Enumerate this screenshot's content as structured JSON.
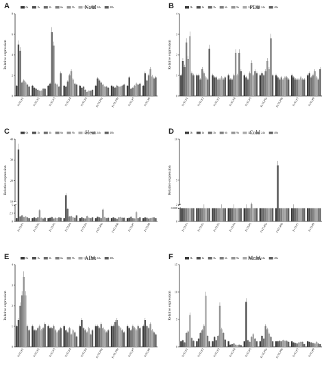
{
  "colors": {
    "series": [
      "#3a3a3a",
      "#505050",
      "#6a6a6a",
      "#7e7e7e",
      "#939393",
      "#a8a8a8",
      "#7a7a7a",
      "#5f5f5f"
    ],
    "axis": "#222222"
  },
  "chart_data": [
    {
      "panel": "A",
      "title": "NaCl",
      "type": "bar",
      "ylabel": "Relative expression",
      "ylim": [
        0,
        8
      ],
      "yticks": [
        0,
        2,
        4,
        6,
        8
      ],
      "categories": [
        "FvTLP1",
        "FvTLP2",
        "FvTLP3",
        "FvTLP4",
        "FvTLP5",
        "FvTLP6a",
        "FvTLP6b",
        "FvTLP7",
        "FvTLP8"
      ],
      "series": [
        {
          "name": "0h",
          "values": [
            1.0,
            1.0,
            1.0,
            1.0,
            1.0,
            1.0,
            1.0,
            1.0,
            1.0
          ]
        },
        {
          "name": "1h",
          "values": [
            5.0,
            0.8,
            1.2,
            0.9,
            0.8,
            1.7,
            0.9,
            1.8,
            2.2
          ]
        },
        {
          "name": "3h",
          "values": [
            4.4,
            0.7,
            6.2,
            1.4,
            0.9,
            1.5,
            0.8,
            0.7,
            1.5
          ]
        },
        {
          "name": "6h",
          "values": [
            1.3,
            0.6,
            4.9,
            2.0,
            0.6,
            1.3,
            1.0,
            0.8,
            2.0
          ]
        },
        {
          "name": "9h",
          "values": [
            1.5,
            0.5,
            1.2,
            2.4,
            0.4,
            1.1,
            0.9,
            1.0,
            2.6
          ]
        },
        {
          "name": "12h",
          "values": [
            1.3,
            0.5,
            1.1,
            1.6,
            0.5,
            0.9,
            0.9,
            1.2,
            1.9
          ]
        },
        {
          "name": "24h",
          "values": [
            1.1,
            0.7,
            0.9,
            1.2,
            0.5,
            0.9,
            1.0,
            1.1,
            1.7
          ]
        },
        {
          "name": "48h",
          "values": [
            0.9,
            0.7,
            2.2,
            1.1,
            0.6,
            0.8,
            1.1,
            1.2,
            1.8
          ]
        }
      ]
    },
    {
      "panel": "B",
      "title": "PEG",
      "type": "bar",
      "ylabel": "Relative expression",
      "ylim": [
        0,
        4
      ],
      "yticks": [
        0,
        1,
        2,
        3,
        4
      ],
      "categories": [
        "FvTLP1",
        "FvTLP2",
        "FvTLP3",
        "FvTLP4",
        "FvTLP5",
        "FvTLP6a",
        "FvTLP6b",
        "FvTLP7",
        "FvTLP8"
      ],
      "series": [
        {
          "name": "0h",
          "values": [
            1.0,
            1.0,
            1.0,
            1.0,
            1.0,
            1.0,
            1.0,
            1.0,
            1.0
          ]
        },
        {
          "name": "1h",
          "values": [
            1.7,
            1.0,
            0.9,
            0.8,
            0.9,
            1.1,
            0.9,
            0.9,
            1.1
          ]
        },
        {
          "name": "3h",
          "values": [
            1.4,
            0.8,
            0.9,
            0.8,
            0.8,
            1.0,
            0.8,
            0.8,
            0.9
          ]
        },
        {
          "name": "6h",
          "values": [
            2.6,
            1.3,
            0.8,
            1.0,
            1.1,
            1.2,
            0.9,
            0.8,
            1.0
          ]
        },
        {
          "name": "9h",
          "values": [
            1.8,
            1.1,
            0.8,
            2.1,
            1.6,
            1.7,
            0.8,
            0.8,
            1.2
          ]
        },
        {
          "name": "12h",
          "values": [
            2.9,
            0.9,
            0.9,
            1.0,
            1.0,
            1.3,
            0.9,
            0.9,
            0.9
          ]
        },
        {
          "name": "24h",
          "values": [
            1.1,
            0.8,
            0.8,
            2.1,
            1.2,
            2.8,
            0.9,
            0.8,
            0.8
          ]
        },
        {
          "name": "48h",
          "values": [
            1.0,
            2.3,
            0.9,
            1.2,
            1.1,
            1.0,
            0.8,
            0.8,
            1.3
          ]
        }
      ]
    },
    {
      "panel": "C",
      "title": "Heat",
      "type": "bar",
      "ylabel": "Relative expression",
      "ylim": [
        0,
        40
      ],
      "axis_break": {
        "low_max": 5,
        "high_min": 10
      },
      "yticks": [
        0,
        2.5,
        5,
        10,
        20,
        30,
        40
      ],
      "categories": [
        "FvTLP1",
        "FvTLP2",
        "FvTLP3",
        "FvTLP4",
        "FvTLP5",
        "FvTLP6a",
        "FvTLP6b",
        "FvTLP7",
        "FvTLP8"
      ],
      "series": [
        {
          "name": "0h",
          "values": [
            1.0,
            1.0,
            1.0,
            1.0,
            1.0,
            1.0,
            1.0,
            1.0,
            1.0
          ]
        },
        {
          "name": "1h",
          "values": [
            35.0,
            1.2,
            1.1,
            13.0,
            1.2,
            1.4,
            1.2,
            1.1,
            1.2
          ]
        },
        {
          "name": "3h",
          "values": [
            1.5,
            1.0,
            1.3,
            3.8,
            1.0,
            1.2,
            1.0,
            1.4,
            1.1
          ]
        },
        {
          "name": "6h",
          "values": [
            1.8,
            1.2,
            0.9,
            1.5,
            0.9,
            1.0,
            0.8,
            1.0,
            0.9
          ]
        },
        {
          "name": "9h",
          "values": [
            1.3,
            3.4,
            1.1,
            1.6,
            1.6,
            3.6,
            1.2,
            0.9,
            1.0
          ]
        },
        {
          "name": "12h",
          "values": [
            1.5,
            1.1,
            1.0,
            1.2,
            1.1,
            1.3,
            1.3,
            2.8,
            1.1
          ]
        },
        {
          "name": "24h",
          "values": [
            1.2,
            0.9,
            1.2,
            1.1,
            1.0,
            1.0,
            1.1,
            1.0,
            1.2
          ]
        },
        {
          "name": "48h",
          "values": [
            1.0,
            1.1,
            1.1,
            1.8,
            1.2,
            1.1,
            1.1,
            1.2,
            1.0
          ]
        }
      ]
    },
    {
      "panel": "D",
      "title": "Cold",
      "type": "bar",
      "ylabel": "Relative expression",
      "ylim": [
        0,
        10
      ],
      "axis_break": {
        "low_max": 0.008,
        "high_min": 2
      },
      "yticks": [
        0,
        0.008,
        2,
        5,
        10
      ],
      "categories": [
        "FvTLP1",
        "FvTLP2",
        "FvTLP3",
        "FvTLP4",
        "FvTLP5",
        "FvTLP6a",
        "FvTLP6b",
        "FvTLP7",
        "FvTLP8"
      ],
      "series": [
        {
          "name": "0h",
          "values": [
            1.0,
            1.0,
            1.0,
            1.0,
            1.0,
            1.0,
            1.0,
            1.0,
            1.0
          ]
        },
        {
          "name": "1h",
          "values": [
            1.8,
            1.4,
            1.3,
            1.6,
            1.9,
            1.5,
            6.8,
            1.9,
            1.4
          ]
        },
        {
          "name": "3h",
          "values": [
            1.6,
            1.7,
            1.5,
            1.5,
            1.8,
            1.3,
            1.3,
            1.8,
            1.2
          ]
        },
        {
          "name": "6h",
          "values": [
            1.4,
            1.5,
            1.7,
            1.9,
            1.6,
            1.2,
            1.4,
            1.6,
            1.3
          ]
        },
        {
          "name": "9h",
          "values": [
            1.2,
            1.9,
            1.6,
            1.7,
            2.1,
            1.1,
            1.2,
            1.5,
            1.5
          ]
        },
        {
          "name": "12h",
          "values": [
            1.5,
            1.3,
            1.9,
            1.3,
            1.4,
            1.8,
            1.5,
            1.4,
            1.1
          ]
        },
        {
          "name": "24h",
          "values": [
            1.3,
            1.1,
            1.2,
            1.4,
            1.2,
            1.3,
            1.2,
            1.3,
            1.2
          ]
        },
        {
          "name": "48h",
          "values": [
            0.9,
            1.2,
            1.1,
            1.2,
            1.1,
            1.0,
            1.0,
            1.2,
            0.9
          ]
        }
      ]
    },
    {
      "panel": "E",
      "title": "ABA",
      "type": "bar",
      "ylabel": "Relative expression",
      "ylim": [
        0,
        4
      ],
      "yticks": [
        0,
        1,
        2,
        3,
        4
      ],
      "categories": [
        "FvTLP1",
        "FvTLP2",
        "FvTLP3",
        "FvTLP4",
        "FvTLP5",
        "FvTLP6a",
        "FvTLP6b",
        "FvTLP7",
        "FvTLP8"
      ],
      "series": [
        {
          "name": "0h",
          "values": [
            1.0,
            1.0,
            1.0,
            1.0,
            1.0,
            1.0,
            1.0,
            1.0,
            1.0
          ]
        },
        {
          "name": "1h",
          "values": [
            1.3,
            0.8,
            0.9,
            0.8,
            1.3,
            1.0,
            1.0,
            0.9,
            1.3
          ]
        },
        {
          "name": "3h",
          "values": [
            2.0,
            0.8,
            0.9,
            0.7,
            0.9,
            0.9,
            1.2,
            0.8,
            1.0
          ]
        },
        {
          "name": "6h",
          "values": [
            2.5,
            0.9,
            1.0,
            0.9,
            0.8,
            1.1,
            1.3,
            1.0,
            0.9
          ]
        },
        {
          "name": "9h",
          "values": [
            3.4,
            1.0,
            0.8,
            0.6,
            0.7,
            0.9,
            1.0,
            0.9,
            1.1
          ]
        },
        {
          "name": "12h",
          "values": [
            2.5,
            0.8,
            0.7,
            0.8,
            0.9,
            0.8,
            0.9,
            0.8,
            0.8
          ]
        },
        {
          "name": "24h",
          "values": [
            1.0,
            0.9,
            0.8,
            0.7,
            0.6,
            0.7,
            0.8,
            1.0,
            0.7
          ]
        },
        {
          "name": "48h",
          "values": [
            0.8,
            1.1,
            0.9,
            0.5,
            0.8,
            0.8,
            0.7,
            0.9,
            0.6
          ]
        }
      ]
    },
    {
      "panel": "F",
      "title": "MeJA",
      "type": "bar",
      "ylabel": "Relative expression",
      "ylim": [
        0,
        15
      ],
      "yticks": [
        0,
        5,
        10,
        15
      ],
      "categories": [
        "FvTLP1",
        "FvTLP2",
        "FvTLP3",
        "FvTLP4",
        "FvTLP5",
        "FvTLP6a",
        "FvTLP6b",
        "FvTLP7",
        "FvTLP8"
      ],
      "series": [
        {
          "name": "0h",
          "values": [
            1.0,
            1.0,
            1.0,
            1.0,
            1.0,
            1.0,
            1.0,
            1.0,
            1.0
          ]
        },
        {
          "name": "1h",
          "values": [
            1.2,
            1.5,
            1.8,
            0.4,
            8.2,
            2.0,
            1.0,
            0.8,
            0.9
          ]
        },
        {
          "name": "3h",
          "values": [
            0.8,
            2.5,
            1.2,
            0.5,
            1.2,
            1.5,
            1.1,
            0.7,
            0.8
          ]
        },
        {
          "name": "6h",
          "values": [
            2.5,
            3.0,
            2.0,
            0.6,
            0.9,
            3.8,
            1.0,
            0.6,
            0.7
          ]
        },
        {
          "name": "9h",
          "values": [
            2.8,
            3.8,
            7.5,
            0.4,
            1.8,
            3.2,
            1.2,
            0.8,
            0.6
          ]
        },
        {
          "name": "12h",
          "values": [
            5.8,
            9.3,
            3.2,
            0.3,
            2.3,
            2.4,
            1.1,
            0.9,
            0.9
          ]
        },
        {
          "name": "24h",
          "values": [
            1.6,
            2.0,
            2.5,
            0.4,
            1.5,
            1.8,
            1.1,
            0.9,
            0.6
          ]
        },
        {
          "name": "48h",
          "values": [
            1.1,
            1.0,
            1.3,
            0.3,
            1.0,
            1.0,
            0.9,
            0.5,
            0.5
          ]
        }
      ]
    }
  ]
}
